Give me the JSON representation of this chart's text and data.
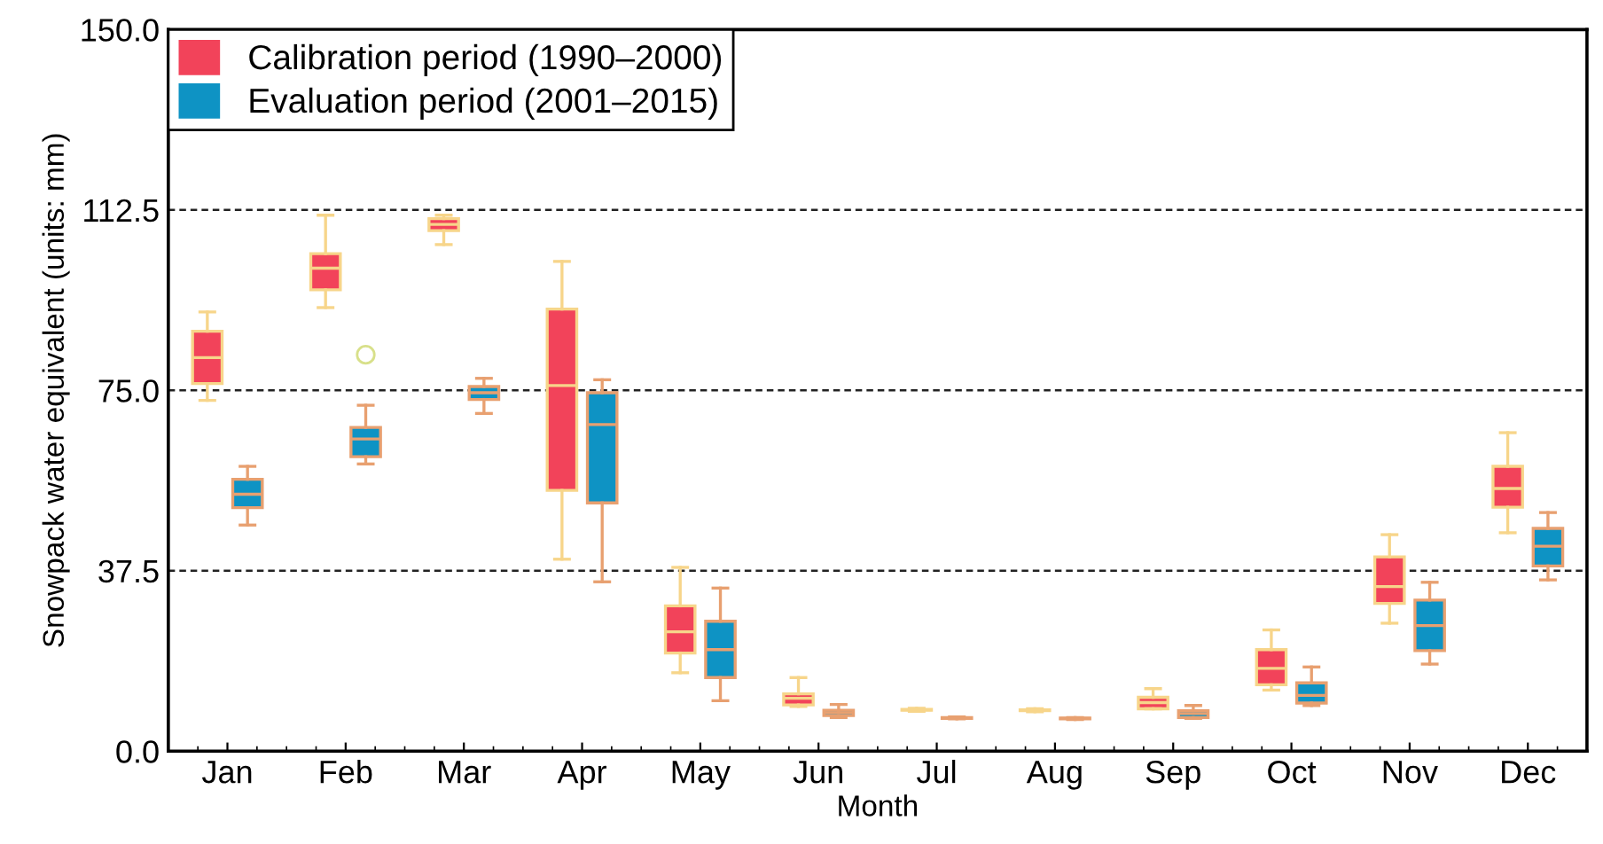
{
  "chart_data": {
    "type": "box",
    "xlabel": "Month",
    "ylabel": "Snowpack water equivalent (units: mm)",
    "categories": [
      "Jan",
      "Feb",
      "Mar",
      "Apr",
      "May",
      "Jun",
      "Jul",
      "Aug",
      "Sep",
      "Oct",
      "Nov",
      "Dec"
    ],
    "ylim": [
      0,
      150
    ],
    "yticks": [
      {
        "value": 0,
        "label": "0.0"
      },
      {
        "value": 37.5,
        "label": "37.5"
      },
      {
        "value": 75,
        "label": "75.0"
      },
      {
        "value": 112.5,
        "label": "112.5"
      },
      {
        "value": 150,
        "label": "150.0"
      }
    ],
    "grid": "y",
    "legend": "top left",
    "series": [
      {
        "name": "Calibration period (1990–2000)",
        "color": "#f2435a",
        "boxes": [
          {
            "low": 72.9,
            "q1": 76.4,
            "median": 81.8,
            "q3": 87.3,
            "high": 91.3
          },
          {
            "low": 92.2,
            "q1": 95.9,
            "median": 100.4,
            "q3": 103.4,
            "high": 111.4
          },
          {
            "low": 105.3,
            "q1": 108.2,
            "median": 109.5,
            "q3": 110.7,
            "high": 111.4
          },
          {
            "low": 39.9,
            "q1": 54.2,
            "median": 76.0,
            "q3": 91.9,
            "high": 101.8
          },
          {
            "low": 16.3,
            "q1": 20.4,
            "median": 24.8,
            "q3": 30.2,
            "high": 38.2
          },
          {
            "low": 9.3,
            "q1": 9.6,
            "median": 11.0,
            "q3": 11.9,
            "high": 15.3
          },
          {
            "low": 8.3,
            "q1": 8.5,
            "median": 8.6,
            "q3": 8.7,
            "high": 8.9
          },
          {
            "low": 8.2,
            "q1": 8.4,
            "median": 8.5,
            "q3": 8.6,
            "high": 8.8
          },
          {
            "low": 8.8,
            "q1": 8.8,
            "median": 10.1,
            "q3": 11.2,
            "high": 13.0
          },
          {
            "low": 12.7,
            "q1": 13.8,
            "median": 17.2,
            "q3": 21.1,
            "high": 25.2
          },
          {
            "low": 26.6,
            "q1": 30.7,
            "median": 34.2,
            "q3": 40.4,
            "high": 45.0
          },
          {
            "low": 45.4,
            "q1": 50.7,
            "median": 54.6,
            "q3": 59.2,
            "high": 66.2
          }
        ]
      },
      {
        "name": "Evaluation period (2001–2015)",
        "color": "#0e93c4",
        "boxes": [
          {
            "low": 47.0,
            "q1": 50.6,
            "median": 53.4,
            "q3": 56.5,
            "high": 59.2
          },
          {
            "low": 59.7,
            "q1": 61.2,
            "median": 64.9,
            "q3": 67.3,
            "high": 71.9,
            "outliers": [
              82.4
            ]
          },
          {
            "low": 70.2,
            "q1": 73.1,
            "median": 74.5,
            "q3": 75.8,
            "high": 77.5
          },
          {
            "low": 35.2,
            "q1": 51.6,
            "median": 67.9,
            "q3": 74.5,
            "high": 77.2
          },
          {
            "low": 10.5,
            "q1": 15.3,
            "median": 21.1,
            "q3": 27.0,
            "high": 33.9
          },
          {
            "low": 7.0,
            "q1": 7.4,
            "median": 8.0,
            "q3": 8.5,
            "high": 9.7
          },
          {
            "low": 6.7,
            "q1": 6.8,
            "median": 6.9,
            "q3": 7.0,
            "high": 7.1
          },
          {
            "low": 6.6,
            "q1": 6.7,
            "median": 6.8,
            "q3": 6.9,
            "high": 7.0
          },
          {
            "low": 6.8,
            "q1": 7.0,
            "median": 7.8,
            "q3": 8.4,
            "high": 9.5
          },
          {
            "low": 9.5,
            "q1": 10.0,
            "median": 11.6,
            "q3": 14.2,
            "high": 17.5
          },
          {
            "low": 18.1,
            "q1": 20.9,
            "median": 26.1,
            "q3": 31.4,
            "high": 35.1
          },
          {
            "low": 35.6,
            "q1": 38.5,
            "median": 42.6,
            "q3": 46.3,
            "high": 49.6
          }
        ]
      }
    ]
  }
}
